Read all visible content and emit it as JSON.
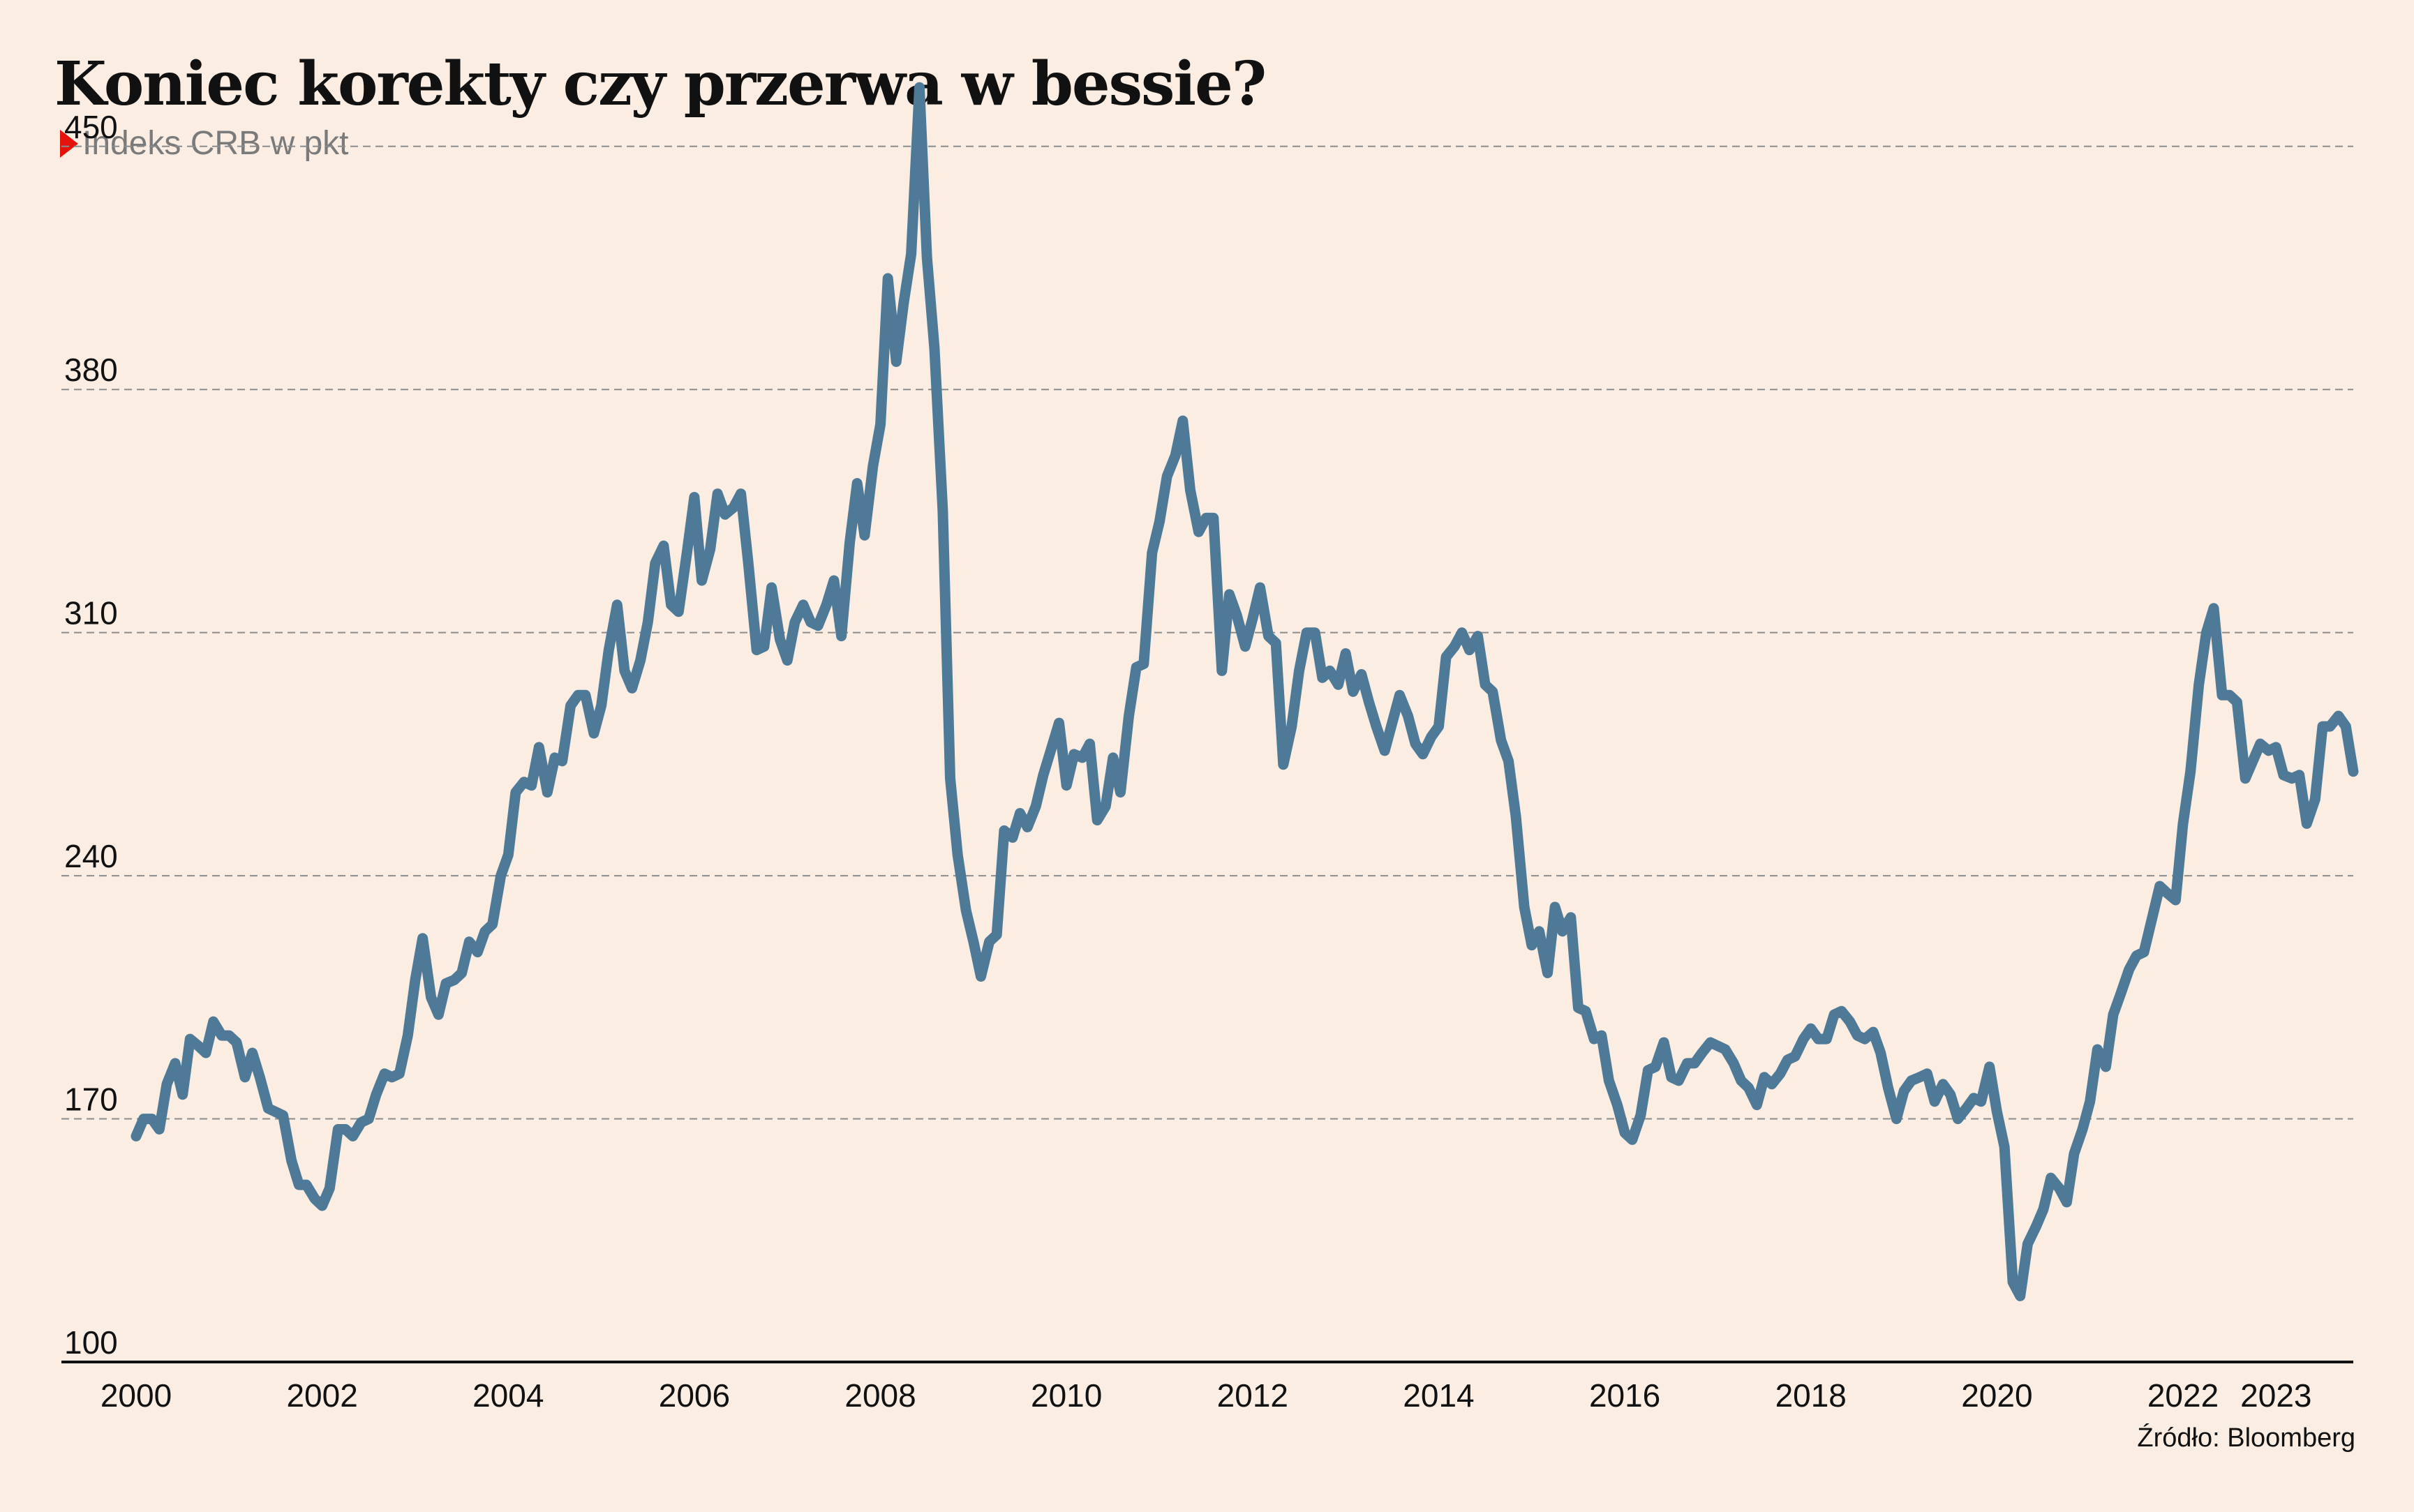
{
  "title": "Koniec korekty czy przerwa w bessie?",
  "subtitle": "Indeks CRB w pkt",
  "source": "Źródło: Bloomberg",
  "colors": {
    "background": "#fbede1",
    "line": "#4e7a98",
    "marker": "#e3120b",
    "grid": "#8c8c8c",
    "axis": "#111111"
  },
  "chart_data": {
    "type": "line",
    "title": "Koniec korekty czy przerwa w bessie?",
    "subtitle": "Indeks CRB w pkt",
    "xlabel": "",
    "ylabel": "",
    "ylim": [
      100,
      460
    ],
    "xlim": [
      2000,
      2023.83
    ],
    "yticks": [
      100,
      170,
      240,
      310,
      380,
      450
    ],
    "xticks": [
      {
        "value": 2000,
        "label": "2000"
      },
      {
        "value": 2002,
        "label": "2002"
      },
      {
        "value": 2004,
        "label": "2004"
      },
      {
        "value": 2006,
        "label": "2006"
      },
      {
        "value": 2008,
        "label": "2008"
      },
      {
        "value": 2010,
        "label": "2010"
      },
      {
        "value": 2012,
        "label": "2012"
      },
      {
        "value": 2014,
        "label": "2014"
      },
      {
        "value": 2016,
        "label": "2016"
      },
      {
        "value": 2018,
        "label": "2018"
      },
      {
        "value": 2020,
        "label": "2020"
      },
      {
        "value": 2022,
        "label": "2022"
      },
      {
        "value": 2023,
        "label": "2023"
      }
    ],
    "grid": "horizontal-dashed",
    "legend": "none",
    "series": [
      {
        "color": "#4e7a98",
        "points": [
          [
            2000.0,
            165
          ],
          [
            2000.08,
            170
          ],
          [
            2000.17,
            170
          ],
          [
            2000.25,
            167
          ],
          [
            2000.33,
            180
          ],
          [
            2000.42,
            186
          ],
          [
            2000.5,
            177
          ],
          [
            2000.58,
            193
          ],
          [
            2000.67,
            191
          ],
          [
            2000.75,
            189
          ],
          [
            2000.83,
            198
          ],
          [
            2000.92,
            194
          ],
          [
            2001.0,
            194
          ],
          [
            2001.08,
            192
          ],
          [
            2001.17,
            182
          ],
          [
            2001.25,
            189
          ],
          [
            2001.33,
            182
          ],
          [
            2001.42,
            173
          ],
          [
            2001.5,
            172
          ],
          [
            2001.58,
            171
          ],
          [
            2001.67,
            158
          ],
          [
            2001.75,
            151
          ],
          [
            2001.83,
            151
          ],
          [
            2001.92,
            147
          ],
          [
            2002.0,
            145
          ],
          [
            2002.08,
            150
          ],
          [
            2002.17,
            167
          ],
          [
            2002.25,
            167
          ],
          [
            2002.33,
            165
          ],
          [
            2002.42,
            169
          ],
          [
            2002.5,
            170
          ],
          [
            2002.58,
            177
          ],
          [
            2002.67,
            183
          ],
          [
            2002.75,
            182
          ],
          [
            2002.83,
            183
          ],
          [
            2002.92,
            194
          ],
          [
            2003.0,
            210
          ],
          [
            2003.08,
            222
          ],
          [
            2003.17,
            205
          ],
          [
            2003.25,
            200
          ],
          [
            2003.33,
            209
          ],
          [
            2003.42,
            210
          ],
          [
            2003.5,
            212
          ],
          [
            2003.58,
            221
          ],
          [
            2003.67,
            218
          ],
          [
            2003.75,
            224
          ],
          [
            2003.83,
            226
          ],
          [
            2003.92,
            240
          ],
          [
            2004.0,
            246
          ],
          [
            2004.08,
            264
          ],
          [
            2004.17,
            267
          ],
          [
            2004.25,
            266
          ],
          [
            2004.33,
            277
          ],
          [
            2004.42,
            264
          ],
          [
            2004.5,
            274
          ],
          [
            2004.58,
            273
          ],
          [
            2004.67,
            289
          ],
          [
            2004.75,
            292
          ],
          [
            2004.83,
            292
          ],
          [
            2004.92,
            281
          ],
          [
            2005.0,
            289
          ],
          [
            2005.08,
            305
          ],
          [
            2005.17,
            318
          ],
          [
            2005.25,
            299
          ],
          [
            2005.33,
            294
          ],
          [
            2005.42,
            302
          ],
          [
            2005.5,
            313
          ],
          [
            2005.58,
            330
          ],
          [
            2005.67,
            335
          ],
          [
            2005.75,
            318
          ],
          [
            2005.83,
            316
          ],
          [
            2005.92,
            333
          ],
          [
            2006.0,
            349
          ],
          [
            2006.08,
            325
          ],
          [
            2006.17,
            334
          ],
          [
            2006.25,
            350
          ],
          [
            2006.33,
            344
          ],
          [
            2006.42,
            346
          ],
          [
            2006.5,
            350
          ],
          [
            2006.58,
            330
          ],
          [
            2006.67,
            305
          ],
          [
            2006.75,
            306
          ],
          [
            2006.83,
            323
          ],
          [
            2006.92,
            308
          ],
          [
            2007.0,
            302
          ],
          [
            2007.08,
            313
          ],
          [
            2007.17,
            318
          ],
          [
            2007.25,
            313
          ],
          [
            2007.33,
            312
          ],
          [
            2007.42,
            318
          ],
          [
            2007.5,
            325
          ],
          [
            2007.58,
            309
          ],
          [
            2007.67,
            336
          ],
          [
            2007.75,
            353
          ],
          [
            2007.83,
            338
          ],
          [
            2007.92,
            358
          ],
          [
            2008.0,
            370
          ],
          [
            2008.08,
            412
          ],
          [
            2008.17,
            388
          ],
          [
            2008.25,
            405
          ],
          [
            2008.33,
            419
          ],
          [
            2008.42,
            467
          ],
          [
            2008.5,
            418
          ],
          [
            2008.58,
            392
          ],
          [
            2008.67,
            345
          ],
          [
            2008.75,
            268
          ],
          [
            2008.83,
            246
          ],
          [
            2008.92,
            230
          ],
          [
            2009.0,
            221
          ],
          [
            2009.08,
            211
          ],
          [
            2009.17,
            221
          ],
          [
            2009.25,
            223
          ],
          [
            2009.33,
            253
          ],
          [
            2009.42,
            251
          ],
          [
            2009.5,
            258
          ],
          [
            2009.58,
            254
          ],
          [
            2009.67,
            260
          ],
          [
            2009.75,
            269
          ],
          [
            2009.83,
            276
          ],
          [
            2009.92,
            284
          ],
          [
            2010.0,
            266
          ],
          [
            2010.08,
            275
          ],
          [
            2010.17,
            274
          ],
          [
            2010.25,
            278
          ],
          [
            2010.33,
            256
          ],
          [
            2010.42,
            260
          ],
          [
            2010.5,
            274
          ],
          [
            2010.58,
            264
          ],
          [
            2010.67,
            286
          ],
          [
            2010.75,
            300
          ],
          [
            2010.83,
            301
          ],
          [
            2010.92,
            333
          ],
          [
            2011.0,
            342
          ],
          [
            2011.08,
            355
          ],
          [
            2011.17,
            361
          ],
          [
            2011.25,
            371
          ],
          [
            2011.33,
            351
          ],
          [
            2011.42,
            339
          ],
          [
            2011.5,
            343
          ],
          [
            2011.58,
            343
          ],
          [
            2011.67,
            299
          ],
          [
            2011.75,
            321
          ],
          [
            2011.83,
            315
          ],
          [
            2011.92,
            306
          ],
          [
            2012.0,
            314
          ],
          [
            2012.08,
            323
          ],
          [
            2012.17,
            309
          ],
          [
            2012.25,
            307
          ],
          [
            2012.33,
            272
          ],
          [
            2012.42,
            283
          ],
          [
            2012.5,
            299
          ],
          [
            2012.58,
            310
          ],
          [
            2012.67,
            310
          ],
          [
            2012.75,
            297
          ],
          [
            2012.83,
            299
          ],
          [
            2012.92,
            295
          ],
          [
            2013.0,
            304
          ],
          [
            2013.08,
            293
          ],
          [
            2013.17,
            298
          ],
          [
            2013.25,
            290
          ],
          [
            2013.33,
            283
          ],
          [
            2013.42,
            276
          ],
          [
            2013.5,
            284
          ],
          [
            2013.58,
            292
          ],
          [
            2013.67,
            286
          ],
          [
            2013.75,
            278
          ],
          [
            2013.83,
            275
          ],
          [
            2013.92,
            280
          ],
          [
            2014.0,
            283
          ],
          [
            2014.08,
            303
          ],
          [
            2014.17,
            306
          ],
          [
            2014.25,
            310
          ],
          [
            2014.33,
            305
          ],
          [
            2014.42,
            309
          ],
          [
            2014.5,
            295
          ],
          [
            2014.58,
            293
          ],
          [
            2014.67,
            279
          ],
          [
            2014.75,
            273
          ],
          [
            2014.83,
            257
          ],
          [
            2014.92,
            231
          ],
          [
            2015.0,
            220
          ],
          [
            2015.08,
            224
          ],
          [
            2015.17,
            212
          ],
          [
            2015.25,
            231
          ],
          [
            2015.33,
            224
          ],
          [
            2015.42,
            228
          ],
          [
            2015.5,
            202
          ],
          [
            2015.58,
            201
          ],
          [
            2015.67,
            193
          ],
          [
            2015.75,
            194
          ],
          [
            2015.83,
            181
          ],
          [
            2015.92,
            174
          ],
          [
            2016.0,
            166
          ],
          [
            2016.08,
            164
          ],
          [
            2016.17,
            171
          ],
          [
            2016.25,
            184
          ],
          [
            2016.33,
            185
          ],
          [
            2016.42,
            192
          ],
          [
            2016.5,
            182
          ],
          [
            2016.58,
            181
          ],
          [
            2016.67,
            186
          ],
          [
            2016.75,
            186
          ],
          [
            2016.83,
            189
          ],
          [
            2016.92,
            192
          ],
          [
            2017.0,
            191
          ],
          [
            2017.08,
            190
          ],
          [
            2017.17,
            186
          ],
          [
            2017.25,
            181
          ],
          [
            2017.33,
            179
          ],
          [
            2017.42,
            174
          ],
          [
            2017.5,
            182
          ],
          [
            2017.58,
            180
          ],
          [
            2017.67,
            183
          ],
          [
            2017.75,
            187
          ],
          [
            2017.83,
            188
          ],
          [
            2017.92,
            193
          ],
          [
            2018.0,
            196
          ],
          [
            2018.08,
            193
          ],
          [
            2018.17,
            193
          ],
          [
            2018.25,
            200
          ],
          [
            2018.33,
            201
          ],
          [
            2018.42,
            198
          ],
          [
            2018.5,
            194
          ],
          [
            2018.58,
            193
          ],
          [
            2018.67,
            195
          ],
          [
            2018.75,
            189
          ],
          [
            2018.83,
            179
          ],
          [
            2018.92,
            170
          ],
          [
            2019.0,
            178
          ],
          [
            2019.08,
            181
          ],
          [
            2019.17,
            182
          ],
          [
            2019.25,
            183
          ],
          [
            2019.33,
            175
          ],
          [
            2019.42,
            180
          ],
          [
            2019.5,
            177
          ],
          [
            2019.58,
            170
          ],
          [
            2019.67,
            173
          ],
          [
            2019.75,
            176
          ],
          [
            2019.83,
            175
          ],
          [
            2019.92,
            185
          ],
          [
            2020.0,
            172
          ],
          [
            2020.08,
            162
          ],
          [
            2020.17,
            123
          ],
          [
            2020.25,
            119
          ],
          [
            2020.33,
            134
          ],
          [
            2020.42,
            139
          ],
          [
            2020.5,
            144
          ],
          [
            2020.58,
            153
          ],
          [
            2020.67,
            150
          ],
          [
            2020.75,
            146
          ],
          [
            2020.83,
            160
          ],
          [
            2020.92,
            167
          ],
          [
            2021.0,
            175
          ],
          [
            2021.08,
            190
          ],
          [
            2021.17,
            185
          ],
          [
            2021.25,
            200
          ],
          [
            2021.33,
            206
          ],
          [
            2021.42,
            213
          ],
          [
            2021.5,
            217
          ],
          [
            2021.58,
            218
          ],
          [
            2021.67,
            228
          ],
          [
            2021.75,
            237
          ],
          [
            2021.83,
            235
          ],
          [
            2021.92,
            233
          ],
          [
            2022.0,
            255
          ],
          [
            2022.08,
            270
          ],
          [
            2022.17,
            295
          ],
          [
            2022.25,
            310
          ],
          [
            2022.33,
            317
          ],
          [
            2022.42,
            292
          ],
          [
            2022.5,
            292
          ],
          [
            2022.58,
            290
          ],
          [
            2022.67,
            268
          ],
          [
            2022.75,
            273
          ],
          [
            2022.83,
            278
          ],
          [
            2022.92,
            276
          ],
          [
            2023.0,
            277
          ],
          [
            2023.08,
            269
          ],
          [
            2023.17,
            268
          ],
          [
            2023.25,
            269
          ],
          [
            2023.33,
            255
          ],
          [
            2023.42,
            262
          ],
          [
            2023.5,
            283
          ],
          [
            2023.58,
            283
          ],
          [
            2023.67,
            286
          ],
          [
            2023.75,
            283
          ],
          [
            2023.83,
            270
          ]
        ]
      }
    ]
  }
}
